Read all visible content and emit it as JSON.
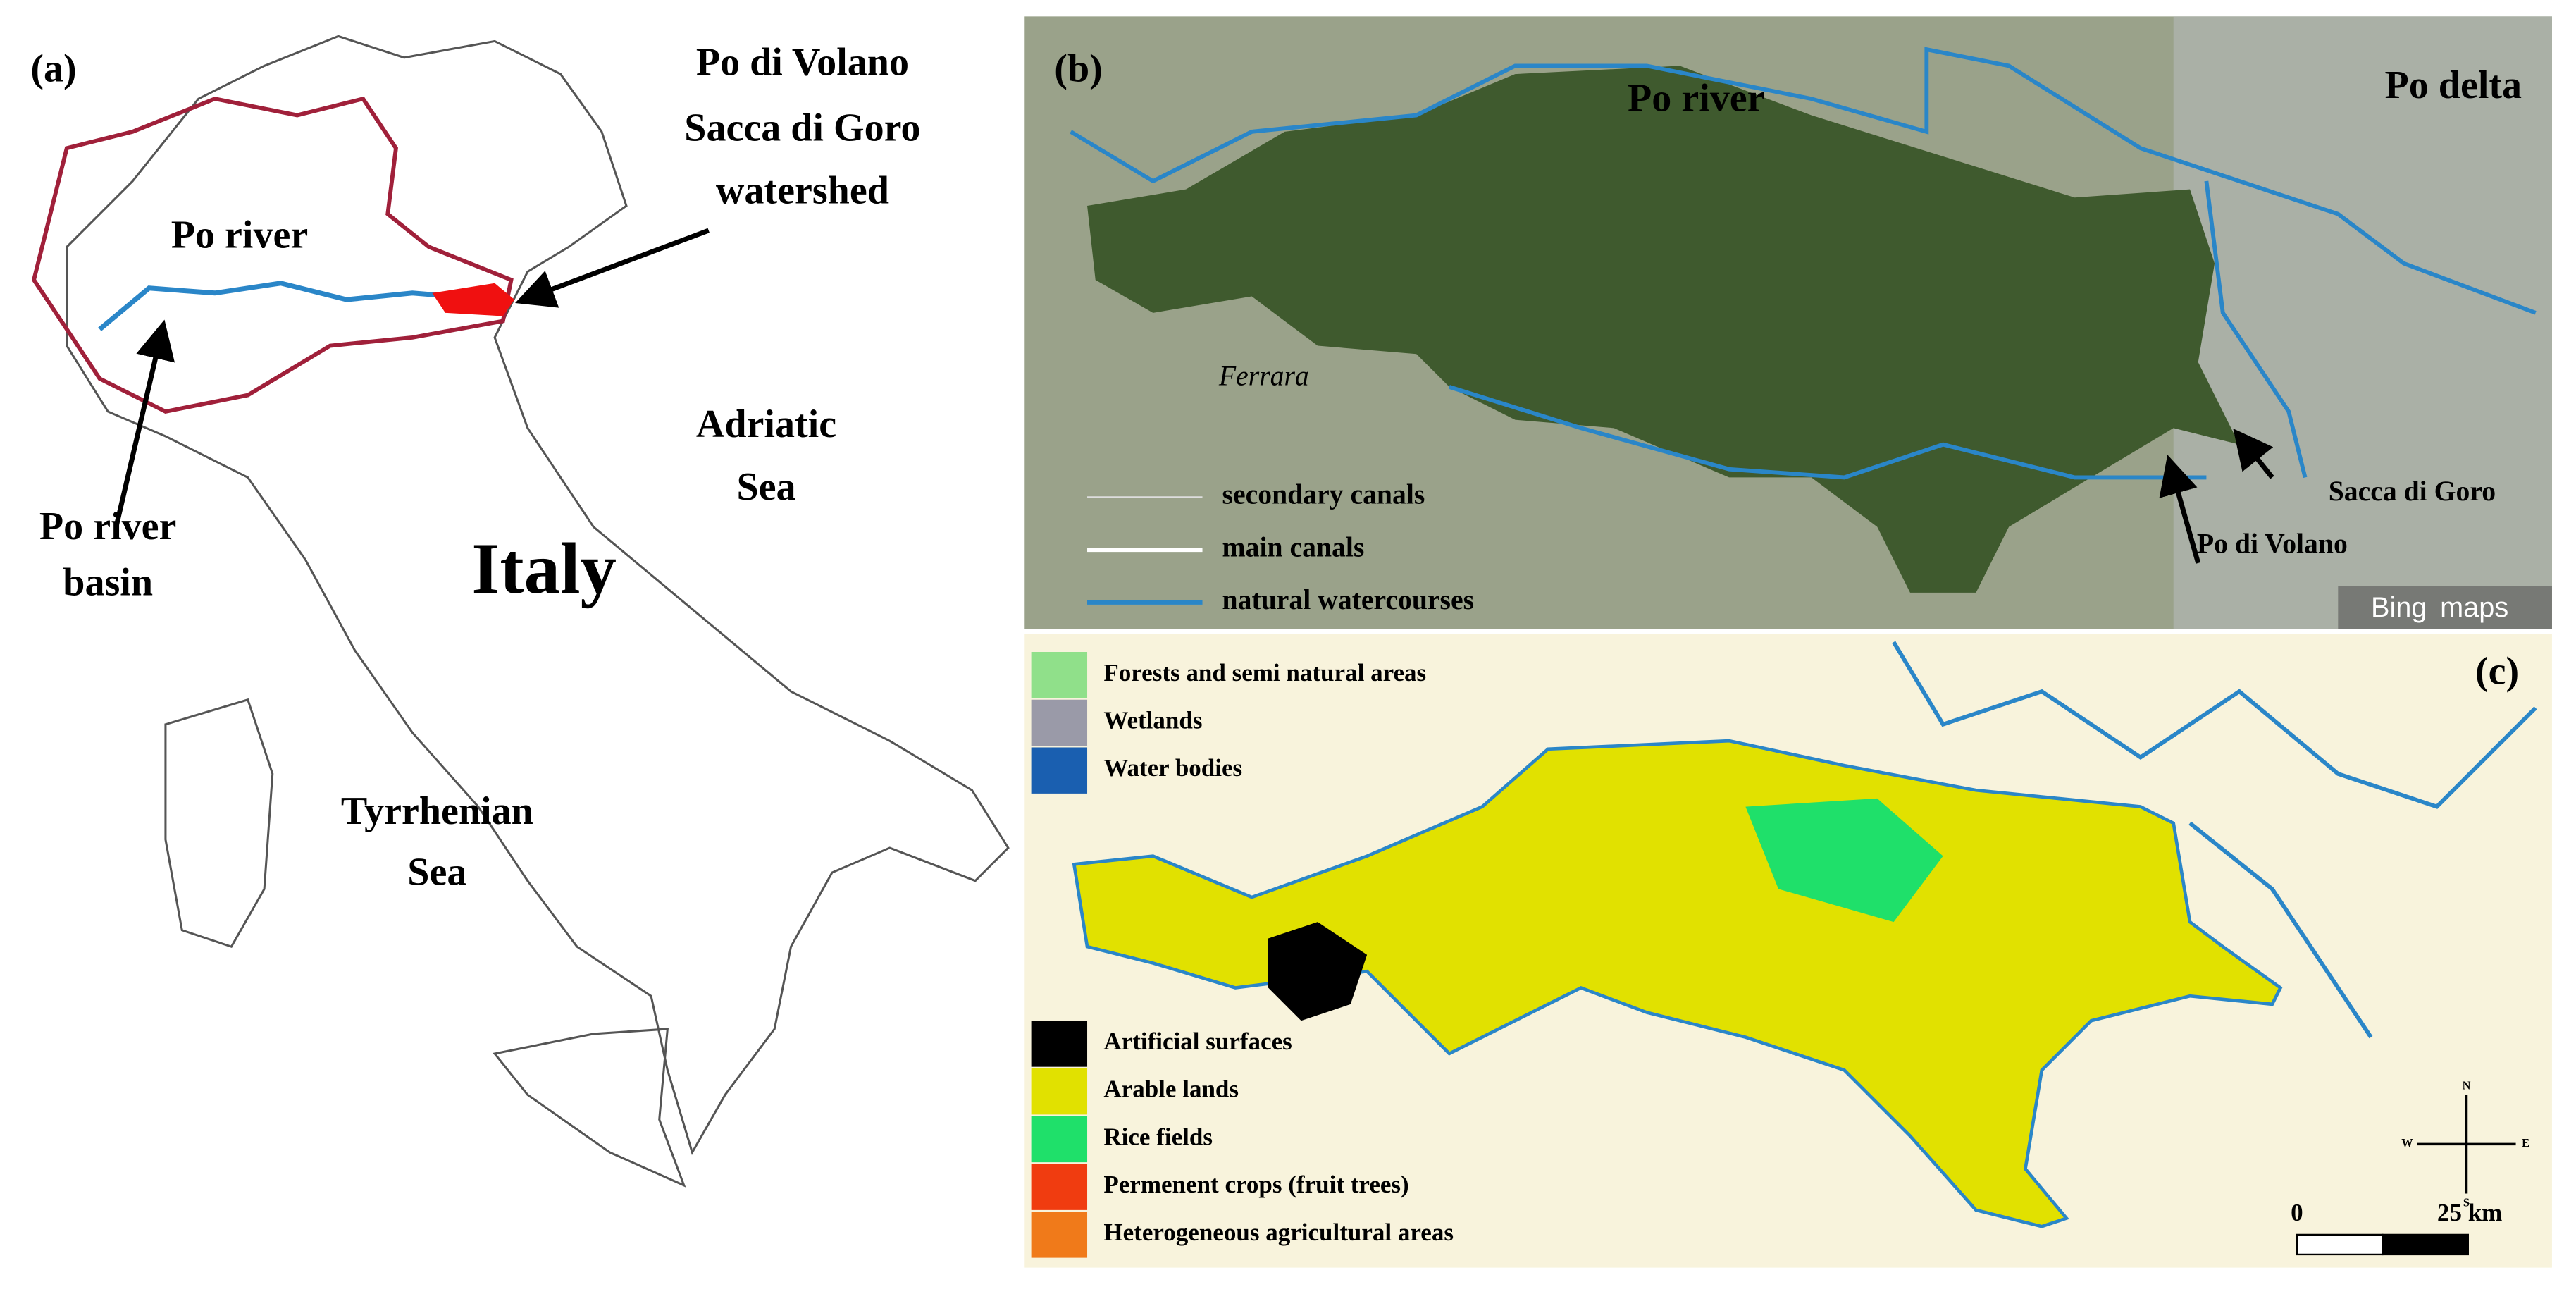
{
  "panel_a": {
    "label": "(a)",
    "watershed_label": [
      "Po di Volano",
      "Sacca di Goro",
      "watershed"
    ],
    "river_label": "Po river",
    "basin_label": [
      "Po river",
      "basin"
    ],
    "sea_east": [
      "Adriatic",
      "Sea"
    ],
    "country": "Italy",
    "sea_west": [
      "Tyrrhenian",
      "Sea"
    ]
  },
  "panel_b": {
    "label": "(b)",
    "river_label": "Po river",
    "delta_label": "Po delta",
    "city_label": "Ferrara",
    "legend": [
      "secondary canals",
      "main canals",
      "natural watercourses"
    ],
    "sacca_label": "Sacca di Goro",
    "volano_label": "Po di Volano",
    "attribution": [
      "Bing",
      "maps"
    ]
  },
  "panel_c": {
    "label": "(c)",
    "legend_top": [
      {
        "name": "Forests and semi natural areas",
        "color": "#90e08a"
      },
      {
        "name": "Wetlands",
        "color": "#9a9aa8"
      },
      {
        "name": "Water bodies",
        "color": "#1a5fb0"
      }
    ],
    "legend_bottom": [
      {
        "name": "Artificial surfaces",
        "color": "#000000"
      },
      {
        "name": "Arable lands",
        "color": "#e1e100"
      },
      {
        "name": "Rice fields",
        "color": "#1fe06a"
      },
      {
        "name": "Permenent crops (fruit trees)",
        "color": "#f03c10"
      },
      {
        "name": "Heterogeneous agricultural areas",
        "color": "#f07a1a"
      }
    ],
    "scale": [
      "0",
      "25 km"
    ],
    "compass": [
      "N",
      "S",
      "E",
      "W"
    ]
  }
}
